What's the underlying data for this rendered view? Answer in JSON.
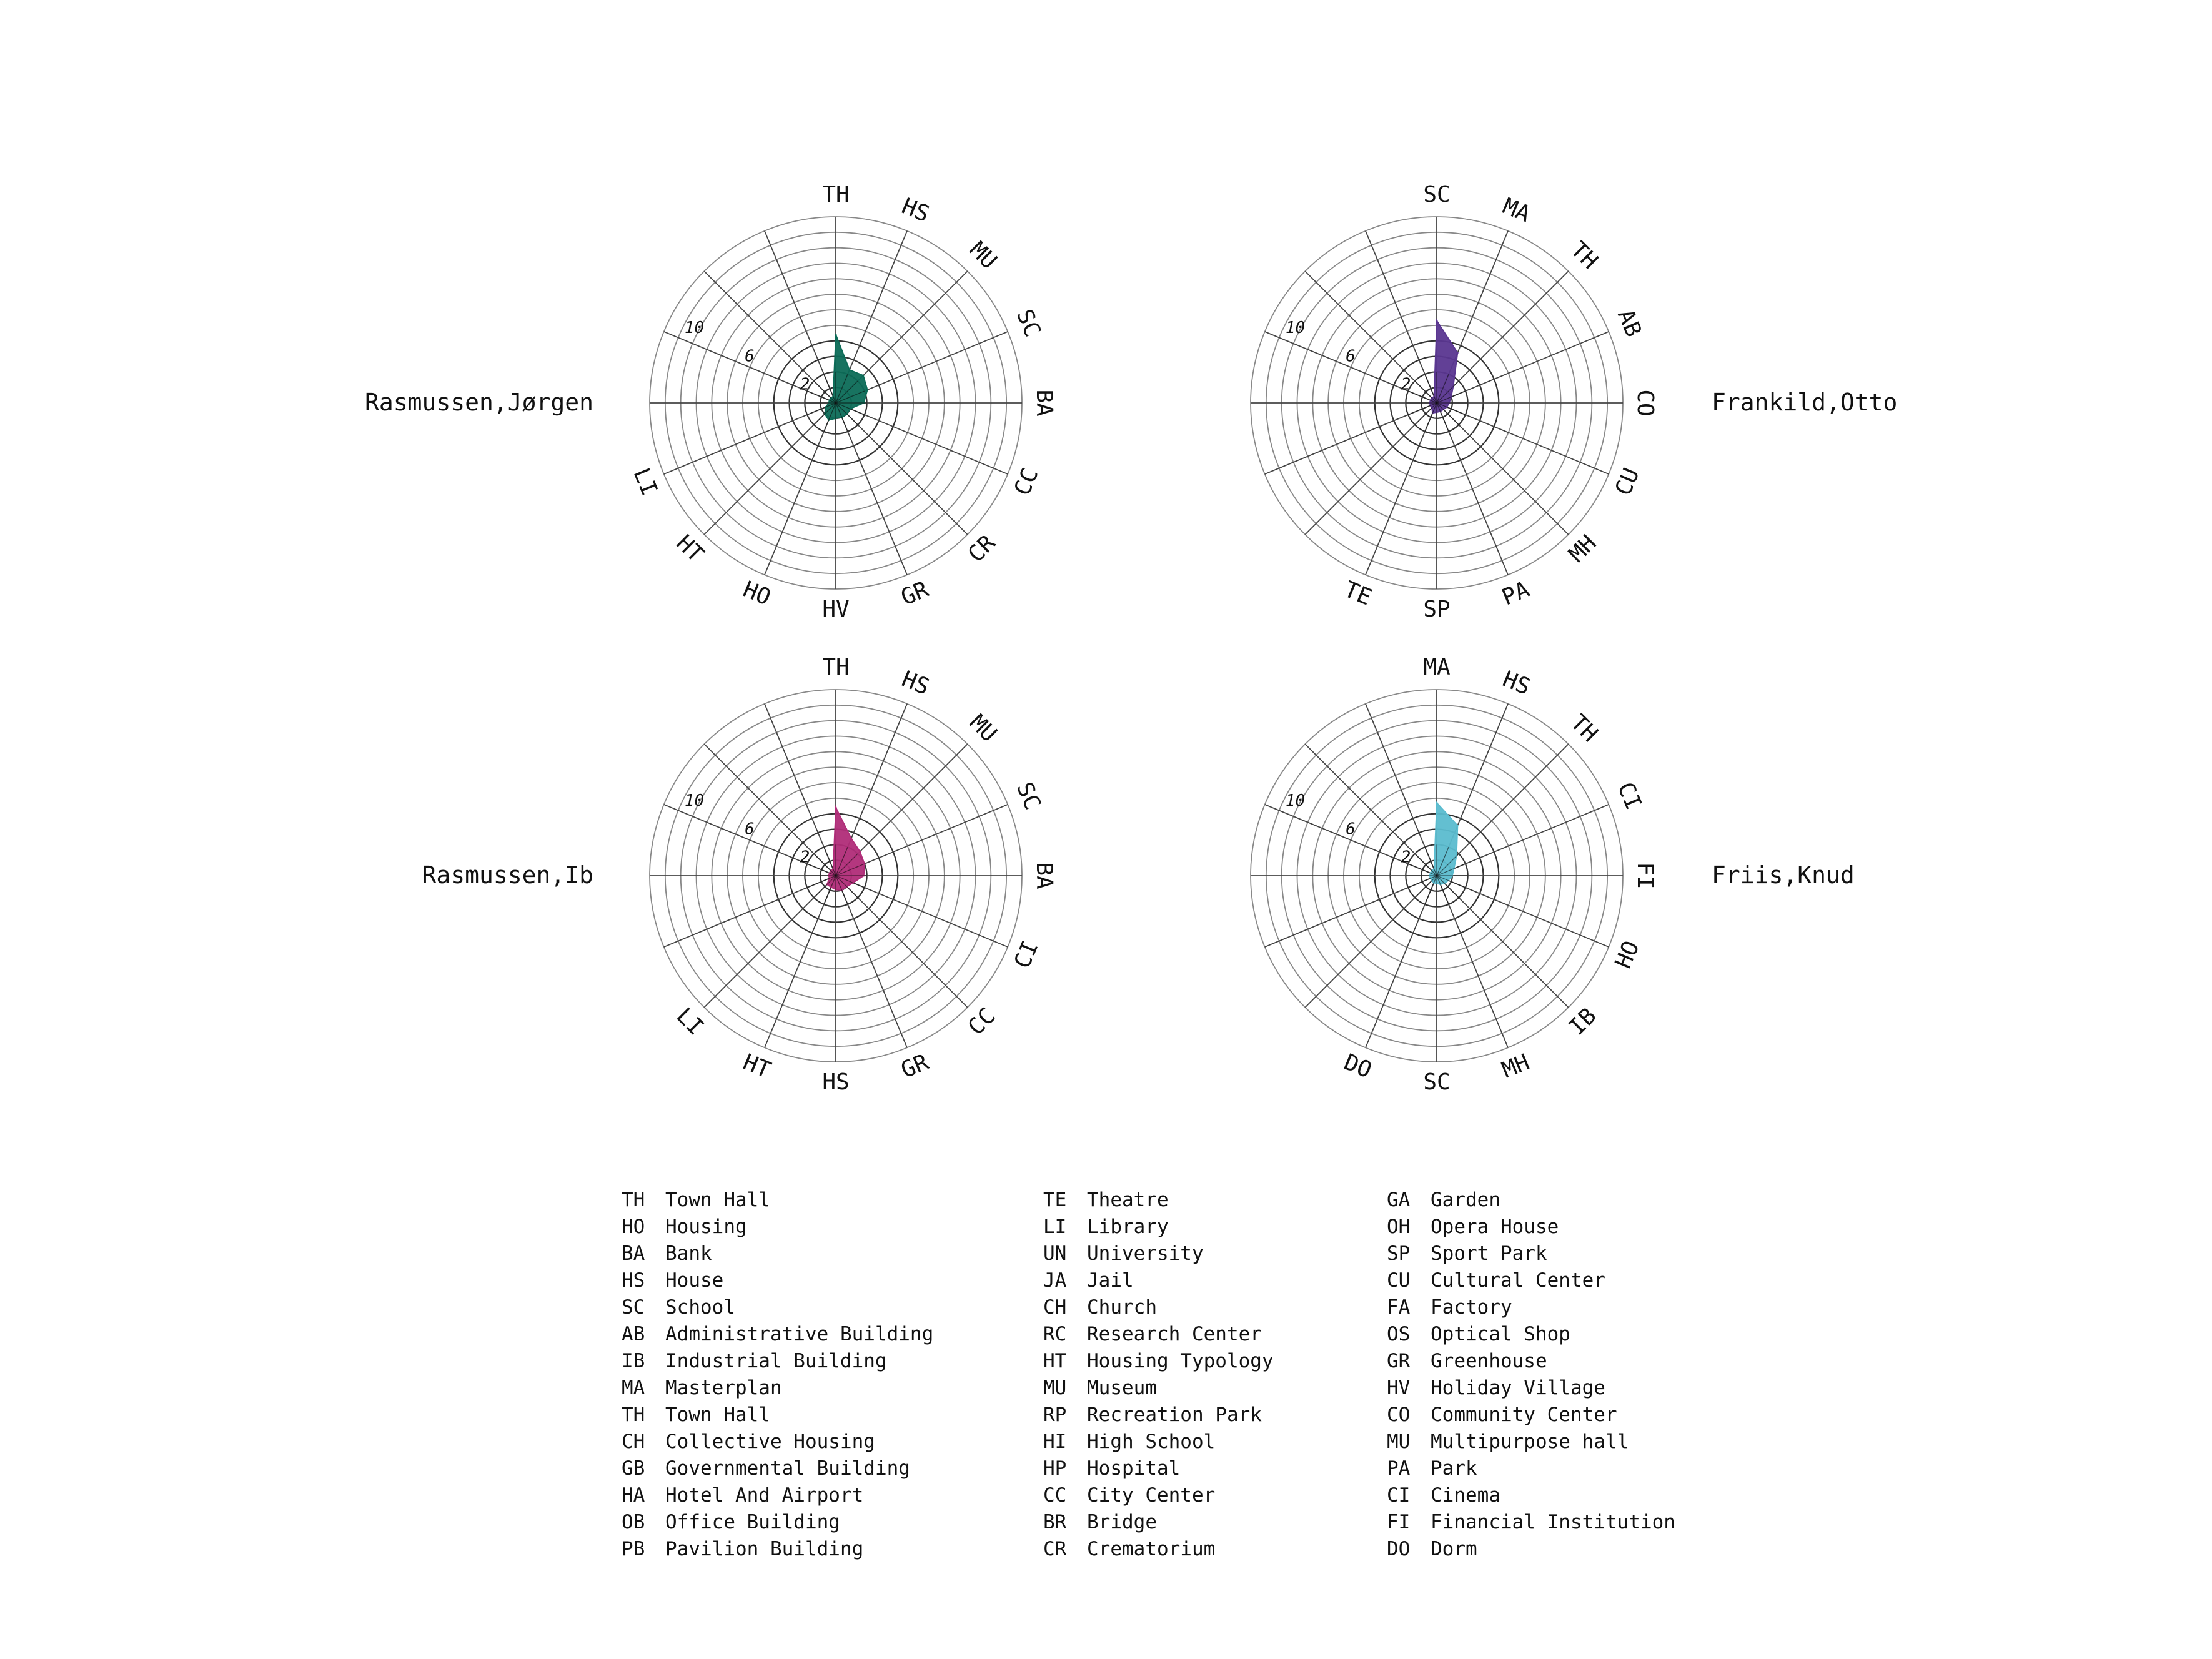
{
  "chart_data": [
    {
      "type": "radar",
      "person": "Rasmussen,Jørgen",
      "categories": [
        "TH",
        "HS",
        "MU",
        "SC",
        "BA",
        "CC",
        "CR",
        "GR",
        "HV",
        "HO",
        "HT",
        "LI"
      ],
      "values": [
        4.4,
        2.3,
        2.5,
        2.2,
        1.8,
        1.0,
        1.0,
        1.0,
        1.0,
        1.2,
        1.0,
        0.7
      ],
      "ring_labels": [
        "2",
        "6",
        "10"
      ],
      "rmax": 12,
      "color": "#0c6b57"
    },
    {
      "type": "radar",
      "person": "Frankild,Otto",
      "categories": [
        "SC",
        "MA",
        "TH",
        "AB",
        "CO",
        "CU",
        "MH",
        "PA",
        "SP",
        "TE"
      ],
      "values": [
        5.3,
        3.5,
        1.5,
        1.0,
        0.8,
        0.7,
        0.6,
        0.6,
        0.6,
        0.7
      ],
      "ring_labels": [
        "2",
        "6",
        "10"
      ],
      "rmax": 12,
      "color": "#5a3690"
    },
    {
      "type": "radar",
      "person": "Rasmussen,Ib",
      "categories": [
        "TH",
        "HS",
        "MU",
        "SC",
        "BA",
        "CI",
        "CC",
        "GR",
        "HS",
        "HT",
        "LI"
      ],
      "values": [
        4.4,
        2.6,
        2.2,
        2.0,
        1.8,
        1.2,
        1.0,
        1.0,
        0.9,
        0.8,
        0.8
      ],
      "ring_labels": [
        "2",
        "6",
        "10"
      ],
      "rmax": 12,
      "color": "#b02c78"
    },
    {
      "type": "radar",
      "person": "Friis,Knud",
      "categories": [
        "MA",
        "HS",
        "TH",
        "CI",
        "FI",
        "HO",
        "IB",
        "MH",
        "SC",
        "DO"
      ],
      "values": [
        4.7,
        3.5,
        1.8,
        1.2,
        1.0,
        0.8,
        0.7,
        0.6,
        0.5,
        0.5
      ],
      "ring_labels": [
        "2",
        "6",
        "10"
      ],
      "rmax": 12,
      "color": "#5bbccf"
    }
  ],
  "legend": [
    [
      {
        "code": "TH",
        "label": "Town Hall"
      },
      {
        "code": "HO",
        "label": "Housing"
      },
      {
        "code": "BA",
        "label": "Bank"
      },
      {
        "code": "HS",
        "label": "House"
      },
      {
        "code": "SC",
        "label": "School"
      },
      {
        "code": "AB",
        "label": "Administrative Building"
      },
      {
        "code": "IB",
        "label": "Industrial Building"
      },
      {
        "code": "MA",
        "label": "Masterplan"
      },
      {
        "code": "TH",
        "label": "Town Hall"
      },
      {
        "code": "CH",
        "label": "Collective Housing"
      },
      {
        "code": "GB",
        "label": "Governmental Building"
      },
      {
        "code": "HA",
        "label": "Hotel And Airport"
      },
      {
        "code": "OB",
        "label": "Office Building"
      },
      {
        "code": "PB",
        "label": "Pavilion Building"
      }
    ],
    [
      {
        "code": "TE",
        "label": "Theatre"
      },
      {
        "code": "LI",
        "label": "Library"
      },
      {
        "code": "UN",
        "label": "University"
      },
      {
        "code": "JA",
        "label": "Jail"
      },
      {
        "code": "CH",
        "label": "Church"
      },
      {
        "code": "RC",
        "label": "Research Center"
      },
      {
        "code": "HT",
        "label": "Housing Typology"
      },
      {
        "code": "MU",
        "label": "Museum"
      },
      {
        "code": "RP",
        "label": "Recreation Park"
      },
      {
        "code": "HI",
        "label": "High School"
      },
      {
        "code": "HP",
        "label": "Hospital"
      },
      {
        "code": "CC",
        "label": "City Center"
      },
      {
        "code": "BR",
        "label": "Bridge"
      },
      {
        "code": "CR",
        "label": "Crematorium"
      }
    ],
    [
      {
        "code": "GA",
        "label": "Garden"
      },
      {
        "code": "OH",
        "label": "Opera House"
      },
      {
        "code": "SP",
        "label": "Sport Park"
      },
      {
        "code": "CU",
        "label": "Cultural Center"
      },
      {
        "code": "FA",
        "label": "Factory"
      },
      {
        "code": "OS",
        "label": "Optical Shop"
      },
      {
        "code": "GR",
        "label": "Greenhouse"
      },
      {
        "code": "HV",
        "label": "Holiday Village"
      },
      {
        "code": "CO",
        "label": "Community Center"
      },
      {
        "code": "MU",
        "label": "Multipurpose hall"
      },
      {
        "code": "PA",
        "label": "Park"
      },
      {
        "code": "CI",
        "label": "Cinema"
      },
      {
        "code": "FI",
        "label": "Financial Institution"
      },
      {
        "code": "DO",
        "label": "Dorm"
      }
    ]
  ]
}
